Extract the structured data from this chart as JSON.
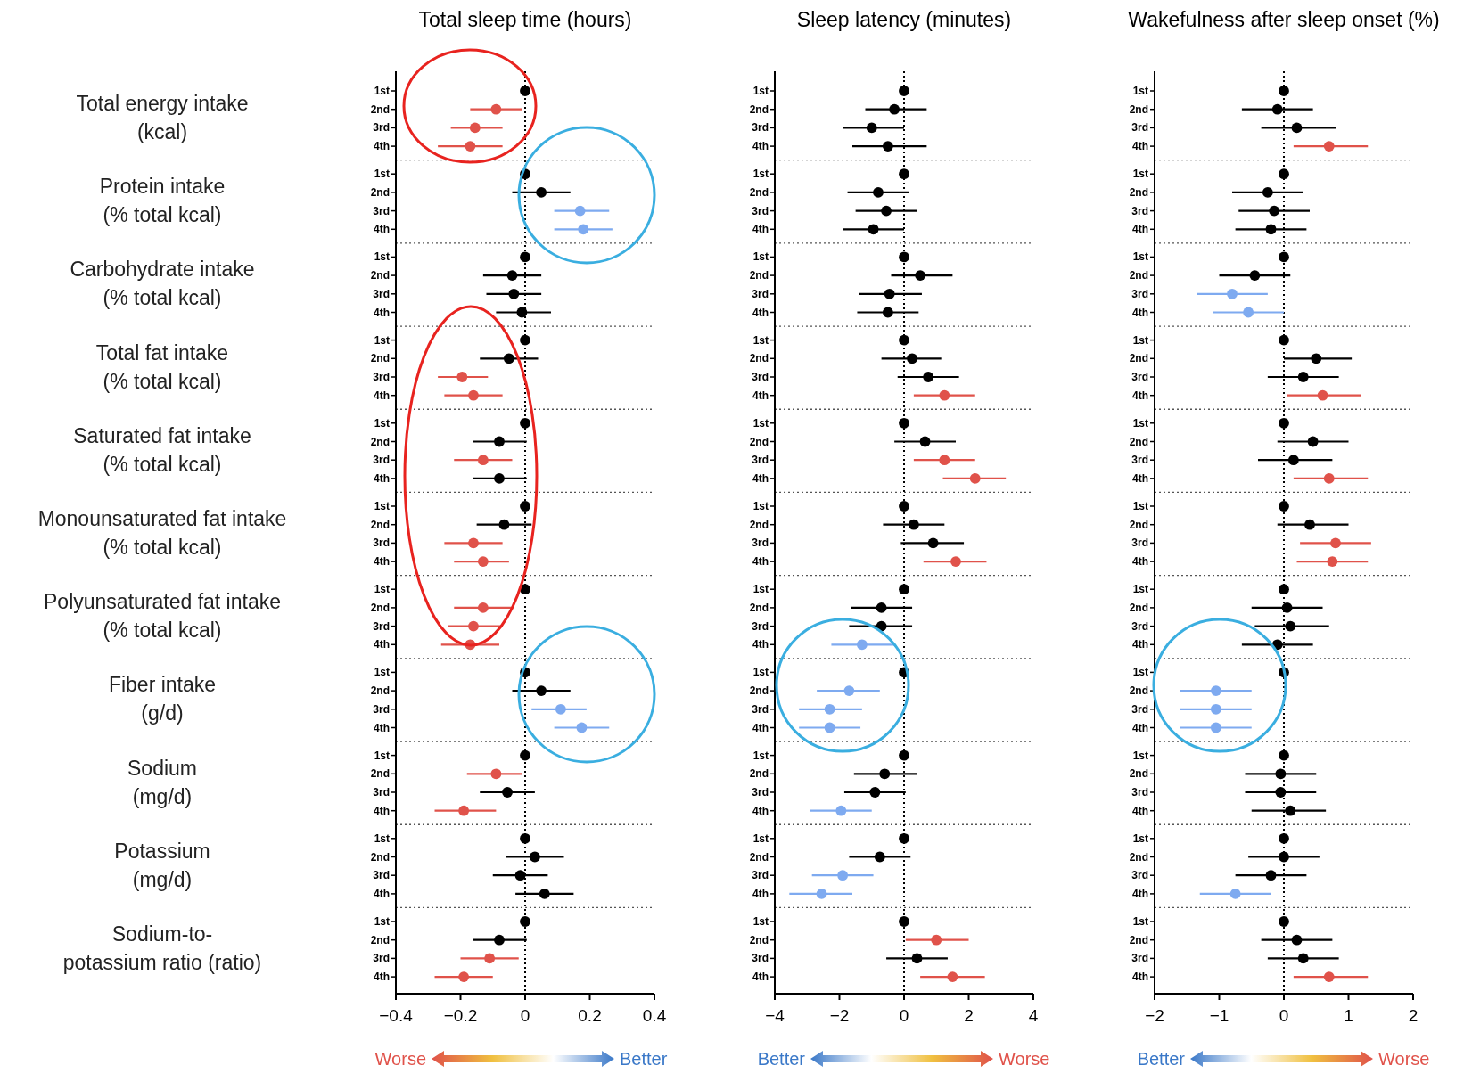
{
  "chart_data": [
    {
      "type": "scatter",
      "orientation": "horizontal",
      "title": "Total sleep time (hours)",
      "marker": "circle",
      "categories": [
        "1st",
        "2nd",
        "3rd",
        "4th",
        "1st",
        "2nd",
        "3rd",
        "4th",
        "1st",
        "2nd",
        "3rd",
        "4th",
        "1st",
        "2nd",
        "3rd",
        "4th",
        "1st",
        "2nd",
        "3rd",
        "4th",
        "1st",
        "2nd",
        "3rd",
        "4th",
        "1st",
        "2nd",
        "3rd",
        "4th",
        "1st",
        "2nd",
        "3rd",
        "4th",
        "1st",
        "2nd",
        "3rd",
        "4th",
        "1st",
        "2nd",
        "3rd",
        "4th",
        "1st",
        "2nd",
        "3rd",
        "4th"
      ],
      "values": [
        0,
        -0.09,
        -0.155,
        -0.17,
        0,
        0.05,
        0.17,
        0.18,
        0,
        -0.04,
        -0.035,
        -0.01,
        0,
        -0.05,
        -0.195,
        -0.16,
        0,
        -0.08,
        -0.13,
        -0.08,
        0,
        -0.065,
        -0.16,
        -0.13,
        0,
        -0.13,
        -0.16,
        -0.17,
        0,
        0.05,
        0.11,
        0.175,
        0,
        -0.09,
        -0.055,
        -0.19,
        0,
        0.03,
        -0.015,
        0.06,
        0,
        -0.08,
        -0.11,
        -0.19
      ],
      "errors": [
        null,
        [
          -0.17,
          -0.01
        ],
        [
          -0.23,
          -0.07
        ],
        [
          -0.27,
          -0.07
        ],
        null,
        [
          -0.04,
          0.14
        ],
        [
          0.09,
          0.26
        ],
        [
          0.09,
          0.27
        ],
        null,
        [
          -0.13,
          0.05
        ],
        [
          -0.12,
          0.05
        ],
        [
          -0.09,
          0.08
        ],
        null,
        [
          -0.14,
          0.04
        ],
        [
          -0.27,
          -0.115
        ],
        [
          -0.25,
          -0.07
        ],
        null,
        [
          -0.16,
          0.005
        ],
        [
          -0.22,
          -0.04
        ],
        [
          -0.16,
          0.005
        ],
        null,
        [
          -0.15,
          0.02
        ],
        [
          -0.25,
          -0.07
        ],
        [
          -0.22,
          -0.05
        ],
        null,
        [
          -0.22,
          -0.04
        ],
        [
          -0.24,
          -0.07
        ],
        [
          -0.26,
          -0.08
        ],
        null,
        [
          -0.04,
          0.14
        ],
        [
          0.02,
          0.19
        ],
        [
          0.09,
          0.26
        ],
        null,
        [
          -0.18,
          -0.01
        ],
        [
          -0.14,
          0.03
        ],
        [
          -0.28,
          -0.09
        ],
        null,
        [
          -0.06,
          0.12
        ],
        [
          -0.1,
          0.07
        ],
        [
          -0.03,
          0.15
        ],
        null,
        [
          -0.16,
          0.005
        ],
        [
          -0.2,
          -0.02
        ],
        [
          -0.28,
          -0.1
        ]
      ],
      "colors": [
        "#000000",
        "#e0524a",
        "#e0524a",
        "#e0524a",
        "#000000",
        "#000000",
        "#7eaaf0",
        "#7eaaf0",
        "#000000",
        "#000000",
        "#000000",
        "#000000",
        "#000000",
        "#000000",
        "#e0524a",
        "#e0524a",
        "#000000",
        "#000000",
        "#e0524a",
        "#000000",
        "#000000",
        "#000000",
        "#e0524a",
        "#e0524a",
        "#000000",
        "#e0524a",
        "#e0524a",
        "#e0524a",
        "#000000",
        "#000000",
        "#7eaaf0",
        "#7eaaf0",
        "#000000",
        "#e0524a",
        "#000000",
        "#e0524a",
        "#000000",
        "#000000",
        "#000000",
        "#000000",
        "#000000",
        "#000000",
        "#e0524a",
        "#e0524a"
      ],
      "xlim": [
        -0.4,
        0.4
      ],
      "xticks": [
        {
          "value": -0.4,
          "label": "−0.4"
        },
        {
          "value": -0.2,
          "label": "−0.2"
        },
        0,
        0.2,
        0.4
      ],
      "ref_lines": [
        {
          "axis": "x",
          "value": 0,
          "line_style": "dotted"
        }
      ],
      "annotations": [
        "Total energy intake\n(kcal)",
        "Protein intake\n(% total kcal)",
        "Carbohydrate intake\n(% total kcal)",
        "Total fat intake\n(% total kcal)",
        "Saturated fat intake\n(% total kcal)",
        "Monounsaturated fat intake\n(% total kcal)",
        "Polyunsaturated fat intake\n(% total kcal)",
        "Fiber intake\n(g/d)",
        "Sodium\n(mg/d)",
        "Potassium\n(mg/d)",
        "Sodium-to-\npotassium ratio (ratio)",
        "Worse",
        "Better"
      ]
    },
    {
      "type": "scatter",
      "orientation": "horizontal",
      "title": "Sleep latency (minutes)",
      "marker": "circle",
      "categories": [
        "1st",
        "2nd",
        "3rd",
        "4th",
        "1st",
        "2nd",
        "3rd",
        "4th",
        "1st",
        "2nd",
        "3rd",
        "4th",
        "1st",
        "2nd",
        "3rd",
        "4th",
        "1st",
        "2nd",
        "3rd",
        "4th",
        "1st",
        "2nd",
        "3rd",
        "4th",
        "1st",
        "2nd",
        "3rd",
        "4th",
        "1st",
        "2nd",
        "3rd",
        "4th",
        "1st",
        "2nd",
        "3rd",
        "4th",
        "1st",
        "2nd",
        "3rd",
        "4th",
        "1st",
        "2nd",
        "3rd",
        "4th"
      ],
      "values": [
        0,
        -0.3,
        -1.0,
        -0.5,
        0,
        -0.8,
        -0.55,
        -0.95,
        0,
        0.5,
        -0.45,
        -0.5,
        0,
        0.25,
        0.75,
        1.25,
        0,
        0.65,
        1.25,
        2.2,
        0,
        0.3,
        0.9,
        1.6,
        0,
        -0.7,
        -0.7,
        -1.3,
        0,
        -1.7,
        -2.3,
        -2.3,
        0,
        -0.6,
        -0.9,
        -1.95,
        0,
        -0.75,
        -1.9,
        -2.55,
        0,
        1.0,
        0.4,
        1.5
      ],
      "errors": [
        null,
        [
          -1.2,
          0.7
        ],
        [
          -1.9,
          0
        ],
        [
          -1.6,
          0.7
        ],
        null,
        [
          -1.75,
          0.15
        ],
        [
          -1.5,
          0.4
        ],
        [
          -1.9,
          0
        ],
        null,
        [
          -0.4,
          1.5
        ],
        [
          -1.4,
          0.55
        ],
        [
          -1.45,
          0.45
        ],
        null,
        [
          -0.7,
          1.15
        ],
        [
          -0.2,
          1.7
        ],
        [
          0.3,
          2.2
        ],
        null,
        [
          -0.3,
          1.6
        ],
        [
          0.3,
          2.2
        ],
        [
          1.2,
          3.15
        ],
        null,
        [
          -0.65,
          1.25
        ],
        [
          -0.1,
          1.85
        ],
        [
          0.6,
          2.55
        ],
        null,
        [
          -1.65,
          0.25
        ],
        [
          -1.7,
          0.25
        ],
        [
          -2.25,
          -0.3
        ],
        null,
        [
          -2.7,
          -0.75
        ],
        [
          -3.25,
          -1.3
        ],
        [
          -3.25,
          -1.35
        ],
        null,
        [
          -1.55,
          0.4
        ],
        [
          -1.85,
          0.05
        ],
        [
          -2.9,
          -1.0
        ],
        null,
        [
          -1.7,
          0.2
        ],
        [
          -2.85,
          -0.95
        ],
        [
          -3.55,
          -1.6
        ],
        null,
        [
          0.05,
          2.0
        ],
        [
          -0.55,
          1.35
        ],
        [
          0.5,
          2.5
        ]
      ],
      "colors": [
        "#000000",
        "#000000",
        "#000000",
        "#000000",
        "#000000",
        "#000000",
        "#000000",
        "#000000",
        "#000000",
        "#000000",
        "#000000",
        "#000000",
        "#000000",
        "#000000",
        "#000000",
        "#e0524a",
        "#000000",
        "#000000",
        "#e0524a",
        "#e0524a",
        "#000000",
        "#000000",
        "#000000",
        "#e0524a",
        "#000000",
        "#000000",
        "#000000",
        "#7eaaf0",
        "#000000",
        "#7eaaf0",
        "#7eaaf0",
        "#7eaaf0",
        "#000000",
        "#000000",
        "#000000",
        "#7eaaf0",
        "#000000",
        "#000000",
        "#7eaaf0",
        "#7eaaf0",
        "#000000",
        "#e0524a",
        "#000000",
        "#e0524a"
      ],
      "xlim": [
        -4,
        4
      ],
      "xticks": [
        {
          "value": -4,
          "label": "−4"
        },
        {
          "value": -2,
          "label": "−2"
        },
        0,
        2,
        4
      ],
      "ref_lines": [
        {
          "axis": "x",
          "value": 0,
          "line_style": "dotted"
        }
      ],
      "annotations": [
        "Better",
        "Worse"
      ]
    },
    {
      "type": "scatter",
      "orientation": "horizontal",
      "title": "Wakefulness after sleep onset (%)",
      "marker": "circle",
      "categories": [
        "1st",
        "2nd",
        "3rd",
        "4th",
        "1st",
        "2nd",
        "3rd",
        "4th",
        "1st",
        "2nd",
        "3rd",
        "4th",
        "1st",
        "2nd",
        "3rd",
        "4th",
        "1st",
        "2nd",
        "3rd",
        "4th",
        "1st",
        "2nd",
        "3rd",
        "4th",
        "1st",
        "2nd",
        "3rd",
        "4th",
        "1st",
        "2nd",
        "3rd",
        "4th",
        "1st",
        "2nd",
        "3rd",
        "4th",
        "1st",
        "2nd",
        "3rd",
        "4th",
        "1st",
        "2nd",
        "3rd",
        "4th"
      ],
      "values": [
        0,
        -0.1,
        0.2,
        0.7,
        0,
        -0.25,
        -0.15,
        -0.2,
        0,
        -0.45,
        -0.8,
        -0.55,
        0,
        0.5,
        0.3,
        0.6,
        0,
        0.45,
        0.15,
        0.7,
        0,
        0.4,
        0.8,
        0.75,
        0,
        0.05,
        0.1,
        -0.1,
        0,
        -1.05,
        -1.05,
        -1.05,
        0,
        -0.05,
        -0.05,
        0.1,
        0,
        0,
        -0.2,
        -0.75,
        0,
        0.2,
        0.3,
        0.7
      ],
      "errors": [
        null,
        [
          -0.65,
          0.45
        ],
        [
          -0.35,
          0.8
        ],
        [
          0.15,
          1.3
        ],
        null,
        [
          -0.8,
          0.3
        ],
        [
          -0.7,
          0.4
        ],
        [
          -0.75,
          0.35
        ],
        null,
        [
          -1.0,
          0.1
        ],
        [
          -1.35,
          -0.25
        ],
        [
          -1.1,
          0
        ],
        null,
        [
          0,
          1.05
        ],
        [
          -0.25,
          0.85
        ],
        [
          0.05,
          1.2
        ],
        null,
        [
          -0.1,
          1.0
        ],
        [
          -0.4,
          0.75
        ],
        [
          0.15,
          1.3
        ],
        null,
        [
          -0.1,
          1.0
        ],
        [
          0.25,
          1.35
        ],
        [
          0.2,
          1.3
        ],
        null,
        [
          -0.5,
          0.6
        ],
        [
          -0.45,
          0.7
        ],
        [
          -0.65,
          0.45
        ],
        null,
        [
          -1.6,
          -0.5
        ],
        [
          -1.6,
          -0.5
        ],
        [
          -1.6,
          -0.5
        ],
        null,
        [
          -0.6,
          0.5
        ],
        [
          -0.6,
          0.5
        ],
        [
          -0.5,
          0.65
        ],
        null,
        [
          -0.55,
          0.55
        ],
        [
          -0.75,
          0.35
        ],
        [
          -1.3,
          -0.2
        ],
        null,
        [
          -0.35,
          0.75
        ],
        [
          -0.25,
          0.85
        ],
        [
          0.15,
          1.3
        ]
      ],
      "colors": [
        "#000000",
        "#000000",
        "#000000",
        "#e0524a",
        "#000000",
        "#000000",
        "#000000",
        "#000000",
        "#000000",
        "#000000",
        "#7eaaf0",
        "#7eaaf0",
        "#000000",
        "#000000",
        "#000000",
        "#e0524a",
        "#000000",
        "#000000",
        "#000000",
        "#e0524a",
        "#000000",
        "#000000",
        "#e0524a",
        "#e0524a",
        "#000000",
        "#000000",
        "#000000",
        "#000000",
        "#000000",
        "#7eaaf0",
        "#7eaaf0",
        "#7eaaf0",
        "#000000",
        "#000000",
        "#000000",
        "#000000",
        "#000000",
        "#000000",
        "#000000",
        "#7eaaf0",
        "#000000",
        "#000000",
        "#000000",
        "#e0524a"
      ],
      "xlim": [
        -2,
        2
      ],
      "xticks": [
        {
          "value": -2,
          "label": "−2"
        },
        {
          "value": -1,
          "label": "−1"
        },
        0,
        1,
        2
      ],
      "ref_lines": [
        {
          "axis": "x",
          "value": 0,
          "line_style": "dotted"
        }
      ],
      "annotations": [
        "Better",
        "Worse"
      ]
    }
  ]
}
